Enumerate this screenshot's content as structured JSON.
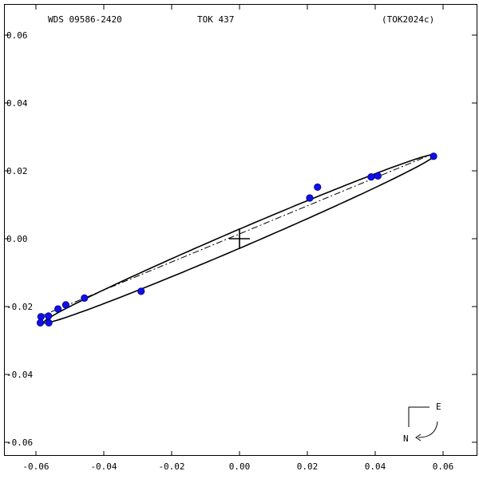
{
  "header": {
    "left": "WDS 09586-2420",
    "center": "TOK 437",
    "right": "(TOK2024c)"
  },
  "compass": {
    "east": "E",
    "north": "N"
  },
  "chart_data": {
    "type": "scatter",
    "title": "",
    "xlabel": "",
    "ylabel": "",
    "xlim": [
      -0.063,
      0.068
    ],
    "ylim": [
      -0.068,
      0.07
    ],
    "xticks": [
      -0.06,
      -0.04,
      -0.02,
      0.0,
      0.02,
      0.04,
      0.06
    ],
    "xtick_labels": [
      "-0.06",
      "-0.04",
      "-0.02",
      "0.00",
      "0.02",
      "0.04",
      "0.06"
    ],
    "yticks": [
      0.06,
      0.04,
      0.02,
      0.0,
      -0.02,
      -0.04,
      -0.06
    ],
    "ytick_labels": [
      "0.06",
      "0.04",
      "0.02",
      "0.00",
      "-0.02",
      "-0.04",
      "-0.06"
    ],
    "grid": false,
    "colors": {
      "points": "#1010e0",
      "orbit": "#000000",
      "axes": "#000000"
    },
    "orbit": {
      "center": [
        0.0,
        0.0
      ],
      "semi_major": 0.0628,
      "semi_minor": 0.0026,
      "angle_deg": 23.2
    },
    "line_of_nodes": {
      "from": [
        -0.059,
        -0.023
      ],
      "to": [
        0.057,
        0.025
      ]
    },
    "primary": [
      0.0,
      0.0
    ],
    "points": [
      {
        "x": -0.0585,
        "y": -0.023
      },
      {
        "x": -0.0587,
        "y": -0.0248
      },
      {
        "x": -0.0563,
        "y": -0.0228
      },
      {
        "x": -0.0562,
        "y": -0.0248
      },
      {
        "x": -0.0535,
        "y": -0.0207
      },
      {
        "x": -0.0512,
        "y": -0.0195
      },
      {
        "x": -0.0457,
        "y": -0.0175
      },
      {
        "x": -0.029,
        "y": -0.0155
      },
      {
        "x": 0.0207,
        "y": 0.012
      },
      {
        "x": 0.023,
        "y": 0.0152
      },
      {
        "x": 0.0388,
        "y": 0.0182
      },
      {
        "x": 0.0408,
        "y": 0.0185
      },
      {
        "x": 0.0572,
        "y": 0.0243
      }
    ]
  }
}
